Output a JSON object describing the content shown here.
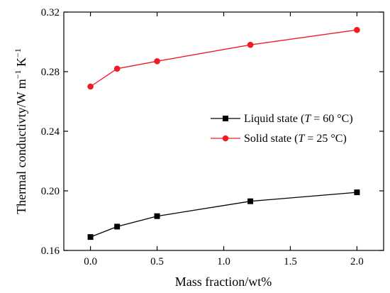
{
  "chart_data": {
    "type": "line",
    "title": "",
    "xlabel": "Mass fraction/wt%",
    "ylabel": {
      "base": "Thermal conductivty/W m",
      "sup1": "−1",
      "mid": " K",
      "sup2": "−1"
    },
    "xlim": [
      -0.2,
      2.2
    ],
    "ylim": [
      0.16,
      0.32
    ],
    "x_ticks": [
      0.0,
      0.5,
      1.0,
      1.5,
      2.0
    ],
    "x_tick_labels": [
      "0.0",
      "0.5",
      "1.0",
      "1.5",
      "2.0"
    ],
    "y_ticks": [
      0.16,
      0.2,
      0.24,
      0.28,
      0.32
    ],
    "y_tick_labels": [
      "0.16",
      "0.20",
      "0.24",
      "0.28",
      "0.32"
    ],
    "grid": false,
    "legend_position": "center-right",
    "series": [
      {
        "name": "Liquid state (T = 60 °C)",
        "legend": {
          "prefix": "Liquid state (",
          "var": "T",
          "suffix": " = 60 °C)"
        },
        "marker": "square",
        "color": "#000000",
        "x": [
          0.0,
          0.2,
          0.5,
          1.2,
          2.0
        ],
        "y": [
          0.169,
          0.176,
          0.183,
          0.193,
          0.199
        ]
      },
      {
        "name": "Solid state (T = 25 °C)",
        "legend": {
          "prefix": "Solid state (",
          "var": "T",
          "suffix": " = 25 °C)"
        },
        "marker": "circle",
        "color": "#ee1c24",
        "x": [
          0.0,
          0.2,
          0.5,
          1.2,
          2.0
        ],
        "y": [
          0.27,
          0.282,
          0.287,
          0.298,
          0.308
        ]
      }
    ]
  }
}
